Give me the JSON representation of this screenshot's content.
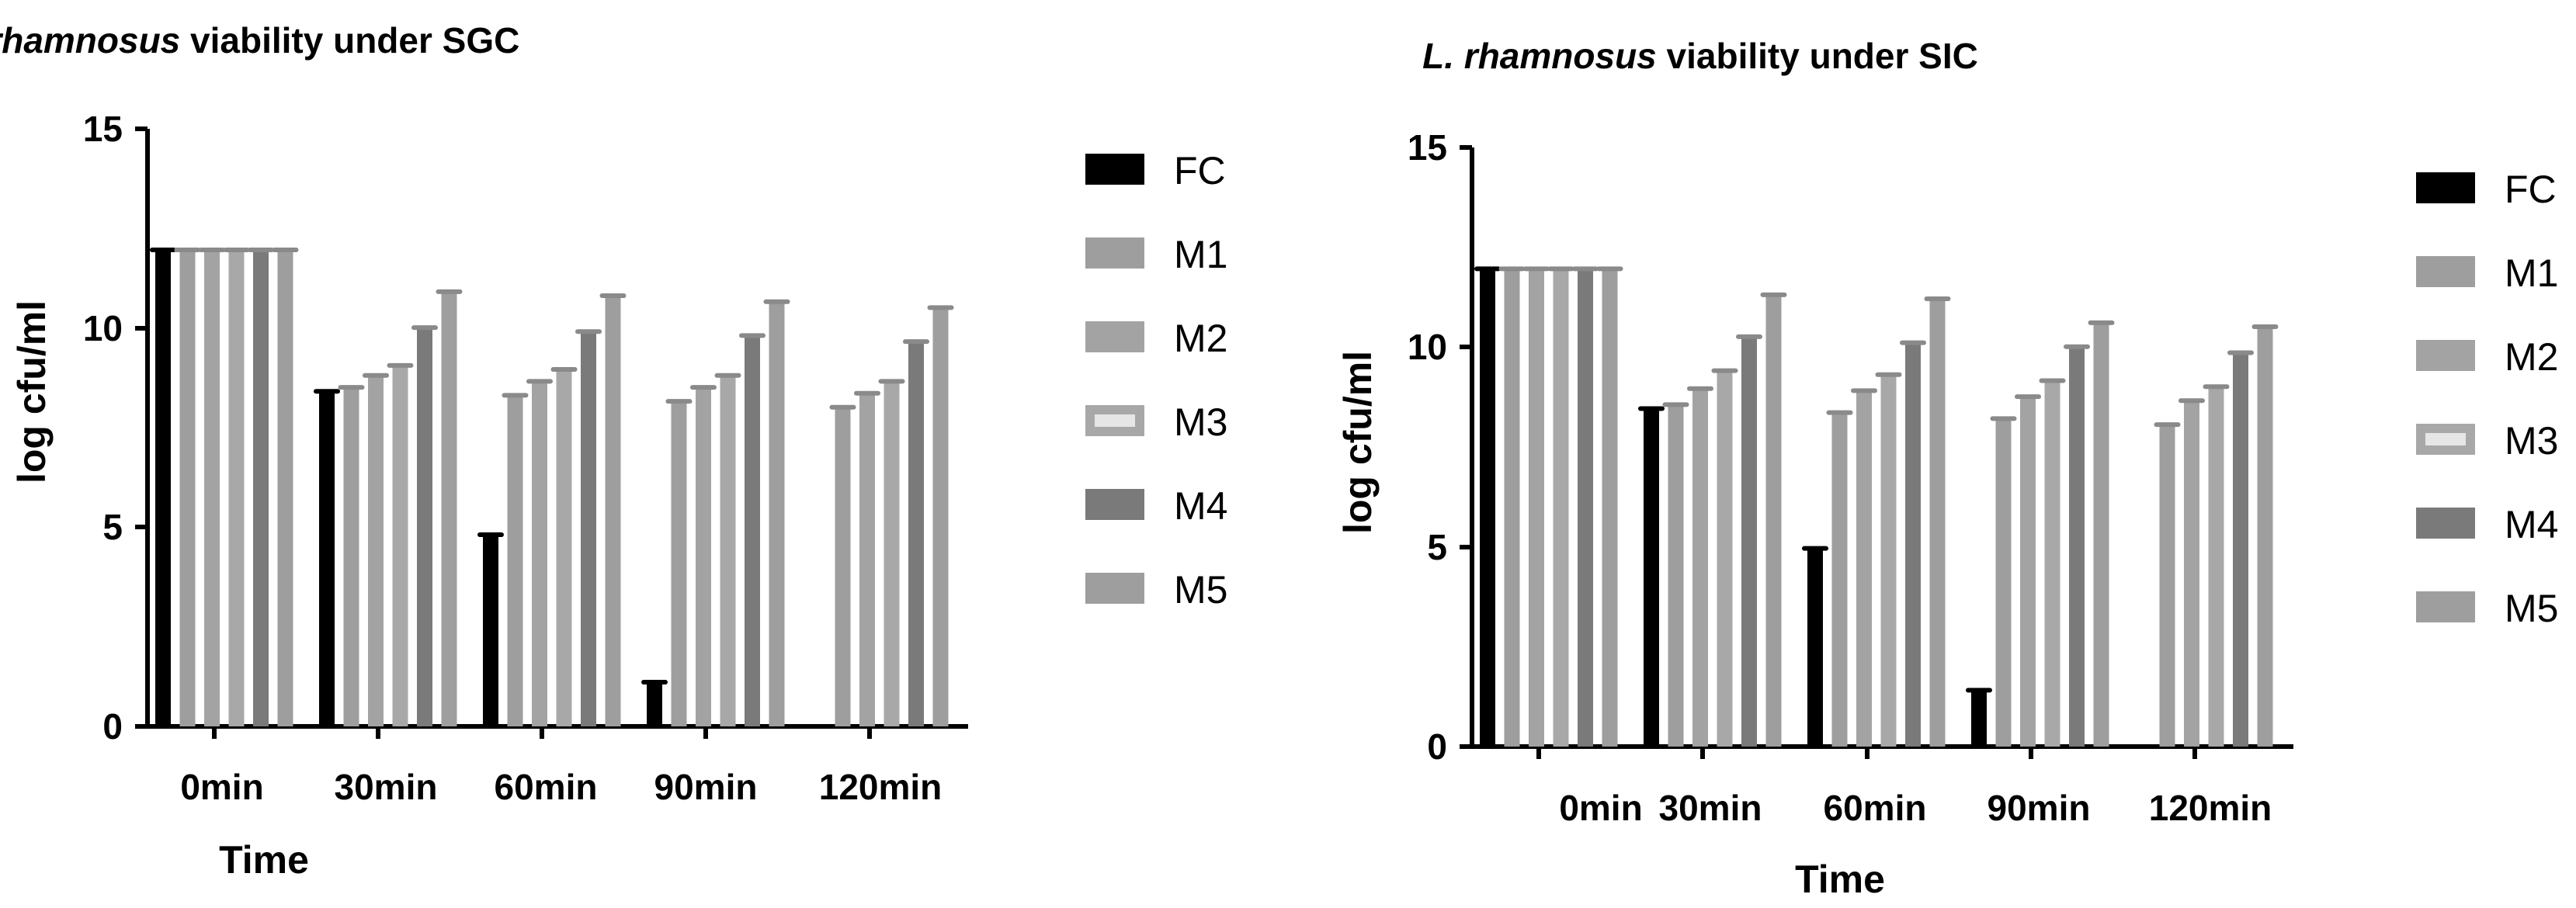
{
  "chart_data": [
    {
      "type": "bar",
      "title_italic": "L. rhamnosus",
      "title_rest": " viability under SGC",
      "xlabel": "Time",
      "ylabel": "log cfu/ml",
      "ylim": [
        0,
        15
      ],
      "yticks": [
        "0",
        "5",
        "10",
        "15"
      ],
      "categories": [
        "0min",
        "30min",
        "60min",
        "90min",
        "120min"
      ],
      "series": [
        {
          "name": "FC",
          "color": "#000000",
          "values": [
            12.0,
            8.45,
            4.85,
            1.15,
            0
          ]
        },
        {
          "name": "M1",
          "color": "#9e9e9e",
          "values": [
            12.0,
            8.55,
            8.35,
            8.2,
            8.05
          ]
        },
        {
          "name": "M2",
          "color": "#a3a3a3",
          "values": [
            12.0,
            8.85,
            8.7,
            8.55,
            8.4
          ]
        },
        {
          "name": "M3",
          "color": "#a8a8a8",
          "values": [
            12.0,
            9.1,
            9.0,
            8.85,
            8.7
          ]
        },
        {
          "name": "M4",
          "color": "#7a7a7a",
          "values": [
            12.0,
            10.05,
            9.95,
            9.85,
            9.7
          ]
        },
        {
          "name": "M5",
          "color": "#9e9e9e",
          "values": [
            12.0,
            10.95,
            10.85,
            10.7,
            10.55
          ]
        }
      ]
    },
    {
      "type": "bar",
      "title_italic": "L. rhamnosus",
      "title_rest": " viability under SIC",
      "xlabel": "Time",
      "ylabel": "log cfu/ml",
      "ylim": [
        0,
        15
      ],
      "yticks": [
        "0",
        "5",
        "10",
        "15"
      ],
      "categories": [
        "0min",
        "30min",
        "60min",
        "90min",
        "120min"
      ],
      "series": [
        {
          "name": "FC",
          "color": "#000000",
          "values": [
            12.0,
            8.5,
            5.0,
            1.45,
            0
          ]
        },
        {
          "name": "M1",
          "color": "#9e9e9e",
          "values": [
            12.0,
            8.6,
            8.4,
            8.25,
            8.1
          ]
        },
        {
          "name": "M2",
          "color": "#a3a3a3",
          "values": [
            12.0,
            9.0,
            8.95,
            8.8,
            8.7
          ]
        },
        {
          "name": "M3",
          "color": "#a8a8a8",
          "values": [
            12.0,
            9.45,
            9.35,
            9.2,
            9.05
          ]
        },
        {
          "name": "M4",
          "color": "#7a7a7a",
          "values": [
            12.0,
            10.3,
            10.15,
            10.05,
            9.9
          ]
        },
        {
          "name": "M5",
          "color": "#9e9e9e",
          "values": [
            12.0,
            11.35,
            11.25,
            10.65,
            10.55
          ]
        }
      ]
    }
  ]
}
